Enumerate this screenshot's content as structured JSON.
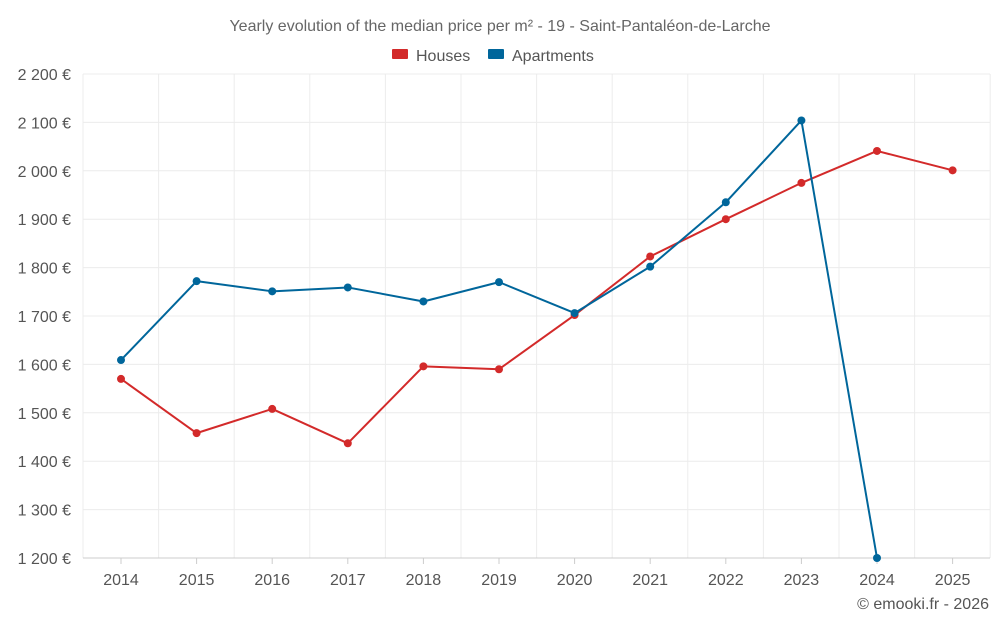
{
  "chart_data": {
    "type": "line",
    "title": "Yearly evolution of the median price per m² - 19 - Saint-Pantaléon-de-Larche",
    "xlabel": "",
    "ylabel": "",
    "categories": [
      "2014",
      "2015",
      "2016",
      "2017",
      "2018",
      "2019",
      "2020",
      "2021",
      "2022",
      "2023",
      "2024",
      "2025"
    ],
    "ylim": [
      1200,
      2200
    ],
    "yticks": [
      1200,
      1300,
      1400,
      1500,
      1600,
      1700,
      1800,
      1900,
      2000,
      2100,
      2200
    ],
    "ytick_labels": [
      "1 200 €",
      "1 300 €",
      "1 400 €",
      "1 500 €",
      "1 600 €",
      "1 700 €",
      "1 800 €",
      "1 900 €",
      "2 000 €",
      "2 100 €",
      "2 200 €"
    ],
    "grid": true,
    "legend": "top-center",
    "series": [
      {
        "name": "Houses",
        "color": "#d32a2a",
        "values": [
          1570,
          1458,
          1508,
          1437,
          1596,
          1590,
          1702,
          1823,
          1900,
          1975,
          2041,
          2001
        ]
      },
      {
        "name": "Apartments",
        "color": "#00669b",
        "values": [
          1609,
          1772,
          1751,
          1759,
          1730,
          1770,
          1706,
          1802,
          1935,
          2104,
          1200,
          null
        ]
      }
    ],
    "credit": "© emooki.fr - 2026"
  }
}
